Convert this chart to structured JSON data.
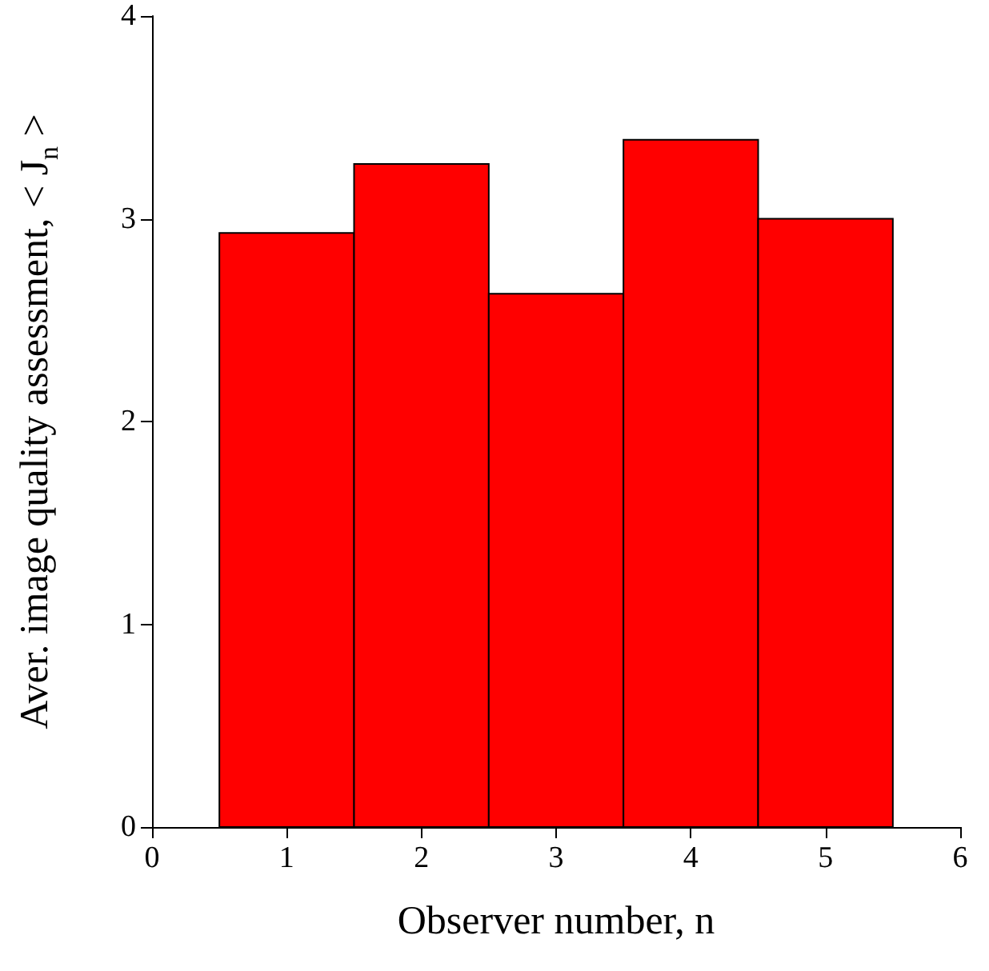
{
  "chart_data": {
    "type": "histogram",
    "xlabel": "Observer number, n",
    "ylabel": "Aver. image quality assessment, < J$_{n}$ >",
    "bins": [
      0.5,
      1.5,
      2.5,
      3.5,
      4.5,
      5.5
    ],
    "values": [
      2.93,
      3.27,
      2.63,
      3.39,
      3.0
    ],
    "color": "#ff0000",
    "xlim": [
      0,
      6
    ],
    "xticks": [
      0,
      1,
      2,
      3,
      4,
      5,
      6
    ],
    "ylim": [
      0,
      4
    ],
    "yticks": [
      0,
      1,
      2,
      3,
      4
    ],
    "grid": false
  }
}
